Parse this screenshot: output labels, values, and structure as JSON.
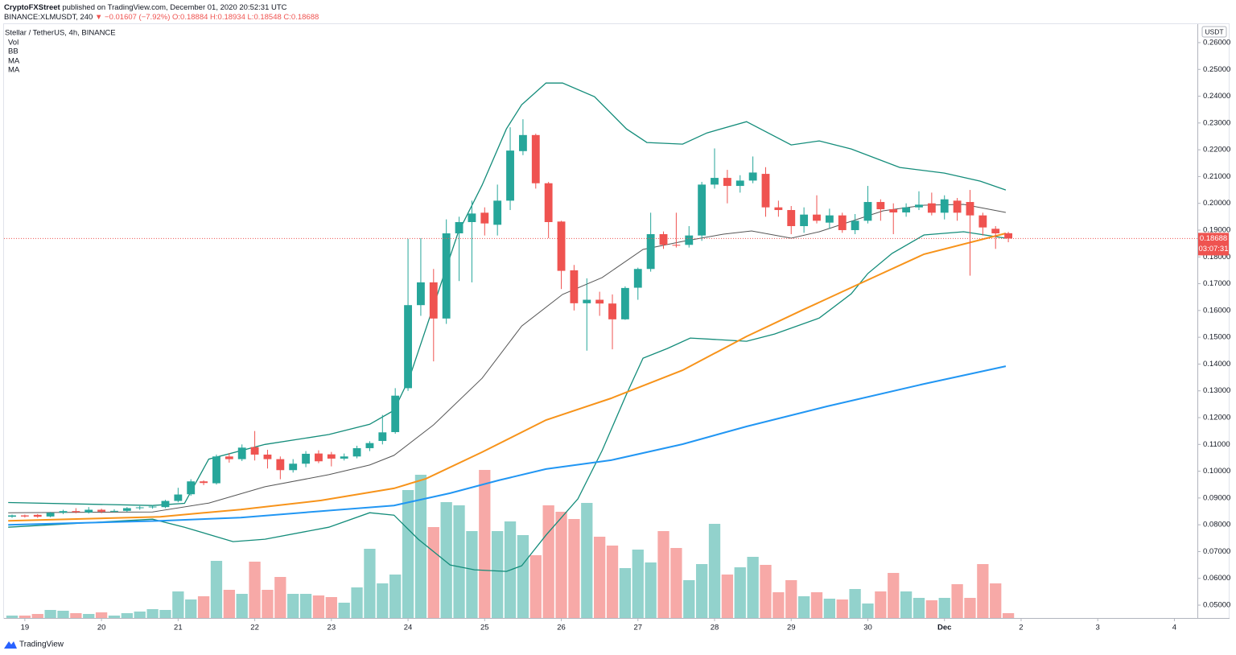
{
  "header": {
    "author": "CryptoFXStreet",
    "published": "published on TradingView.com, December 01, 2020 20:52:31 UTC",
    "symbol": "BINANCE:XLMUSDT, 240",
    "change": "▼ −0.01607 (−7.92%)",
    "ohlc": [
      "O:0.18884",
      "H:0.18934",
      "L:0.18548",
      "C:0.18688"
    ]
  },
  "footer": "TradingView",
  "chart_data": {
    "type": "candlestick",
    "title": "Stellar / TetherUS, 4h, BINANCE",
    "unit": "USDT",
    "up_color": "#26a69a",
    "down_color": "#ef5350",
    "xlim": [
      -0.63,
      92.8
    ],
    "xticks": [
      {
        "value": 1,
        "label": "19"
      },
      {
        "value": 7,
        "label": "20"
      },
      {
        "value": 13,
        "label": "21"
      },
      {
        "value": 19,
        "label": "22"
      },
      {
        "value": 25,
        "label": "23"
      },
      {
        "value": 31,
        "label": "24"
      },
      {
        "value": 37,
        "label": "25"
      },
      {
        "value": 43,
        "label": "26"
      },
      {
        "value": 49,
        "label": "27"
      },
      {
        "value": 55,
        "label": "28"
      },
      {
        "value": 61,
        "label": "29"
      },
      {
        "value": 67,
        "label": "30"
      },
      {
        "value": 73,
        "label": "Dec"
      },
      {
        "value": 79,
        "label": "2"
      },
      {
        "value": 85,
        "label": "3"
      },
      {
        "value": 91,
        "label": "4"
      }
    ],
    "ylim": [
      0.0452,
      0.2669
    ],
    "yticks": [
      {
        "value": 0.05,
        "label": "0.05000"
      },
      {
        "value": 0.06,
        "label": "0.06000"
      },
      {
        "value": 0.07,
        "label": "0.07000"
      },
      {
        "value": 0.08,
        "label": "0.08000"
      },
      {
        "value": 0.09,
        "label": "0.09000"
      },
      {
        "value": 0.1,
        "label": "0.10000"
      },
      {
        "value": 0.11,
        "label": "0.11000"
      },
      {
        "value": 0.12,
        "label": "0.12000"
      },
      {
        "value": 0.13,
        "label": "0.13000"
      },
      {
        "value": 0.14,
        "label": "0.14000"
      },
      {
        "value": 0.15,
        "label": "0.15000"
      },
      {
        "value": 0.16,
        "label": "0.16000"
      },
      {
        "value": 0.17,
        "label": "0.17000"
      },
      {
        "value": 0.18,
        "label": "0.18000"
      },
      {
        "value": 0.19,
        "label": "0.19000"
      },
      {
        "value": 0.2,
        "label": "0.20000"
      },
      {
        "value": 0.21,
        "label": "0.21000"
      },
      {
        "value": 0.22,
        "label": "0.22000"
      },
      {
        "value": 0.23,
        "label": "0.23000"
      },
      {
        "value": 0.24,
        "label": "0.24000"
      },
      {
        "value": 0.25,
        "label": "0.25000"
      },
      {
        "value": 0.26,
        "label": "0.26000"
      }
    ],
    "grid": false,
    "candles": {
      "open": [
        0.083,
        0.0835,
        0.0837,
        0.0831,
        0.0845,
        0.0851,
        0.0846,
        0.0856,
        0.0849,
        0.0852,
        0.0862,
        0.0865,
        0.0866,
        0.0889,
        0.0914,
        0.0962,
        0.0955,
        0.1055,
        0.1045,
        0.109,
        0.1062,
        0.1045,
        0.1004,
        0.1028,
        0.1066,
        0.1063,
        0.1047,
        0.1055,
        0.1086,
        0.1113,
        0.1146,
        0.131,
        0.162,
        0.1705,
        0.157,
        0.1888,
        0.193,
        0.1965,
        0.192,
        0.201,
        0.2195,
        0.2255,
        0.2075,
        0.1932,
        0.175,
        0.1627,
        0.164,
        0.1626,
        0.1567,
        0.1685,
        0.1755,
        0.1885,
        0.1845,
        0.1845,
        0.188,
        0.207,
        0.2095,
        0.2065,
        0.2085,
        0.211,
        0.1985,
        0.1975,
        0.1915,
        0.1958,
        0.1928,
        0.1955,
        0.19,
        0.1935,
        0.2005,
        0.1978,
        0.1966,
        0.1985,
        0.2,
        0.1965,
        0.201,
        0.2005,
        0.1955,
        0.1905,
        0.18884
      ],
      "high": [
        0.0838,
        0.0838,
        0.084,
        0.0848,
        0.0856,
        0.0862,
        0.0866,
        0.086,
        0.0858,
        0.0866,
        0.087,
        0.0874,
        0.0893,
        0.0938,
        0.097,
        0.0966,
        0.1062,
        0.1068,
        0.11,
        0.115,
        0.108,
        0.1055,
        0.1045,
        0.1075,
        0.1078,
        0.1072,
        0.1066,
        0.1095,
        0.1112,
        0.121,
        0.131,
        0.1868,
        0.187,
        0.1755,
        0.194,
        0.195,
        0.201,
        0.1985,
        0.207,
        0.2284,
        0.2314,
        0.226,
        0.208,
        0.1935,
        0.177,
        0.172,
        0.167,
        0.166,
        0.169,
        0.176,
        0.1965,
        0.1895,
        0.1965,
        0.1915,
        0.208,
        0.2205,
        0.2125,
        0.2105,
        0.2175,
        0.2135,
        0.201,
        0.199,
        0.1985,
        0.203,
        0.198,
        0.1965,
        0.196,
        0.2065,
        0.2015,
        0.2,
        0.2,
        0.2045,
        0.204,
        0.203,
        0.202,
        0.205,
        0.1965,
        0.1915,
        0.18934
      ],
      "low": [
        0.0826,
        0.0827,
        0.0826,
        0.0828,
        0.084,
        0.0843,
        0.0842,
        0.0843,
        0.0845,
        0.0848,
        0.0856,
        0.086,
        0.0862,
        0.0884,
        0.0908,
        0.0948,
        0.095,
        0.1032,
        0.1038,
        0.104,
        0.101,
        0.097,
        0.0995,
        0.1015,
        0.103,
        0.1018,
        0.104,
        0.1048,
        0.1075,
        0.11,
        0.114,
        0.13,
        0.158,
        0.141,
        0.155,
        0.171,
        0.1705,
        0.188,
        0.188,
        0.1975,
        0.218,
        0.2055,
        0.187,
        0.168,
        0.16,
        0.145,
        0.158,
        0.1455,
        0.1565,
        0.164,
        0.1745,
        0.183,
        0.1835,
        0.1835,
        0.186,
        0.2055,
        0.2,
        0.204,
        0.2075,
        0.195,
        0.195,
        0.1885,
        0.189,
        0.1925,
        0.1905,
        0.189,
        0.1885,
        0.1925,
        0.1935,
        0.1885,
        0.195,
        0.1975,
        0.1955,
        0.194,
        0.1935,
        0.173,
        0.188,
        0.183,
        0.18548
      ],
      "close": [
        0.0835,
        0.0831,
        0.083,
        0.0845,
        0.0851,
        0.0847,
        0.0856,
        0.0849,
        0.0852,
        0.0862,
        0.0865,
        0.0868,
        0.0889,
        0.0913,
        0.0962,
        0.0956,
        0.1055,
        0.1045,
        0.1088,
        0.1062,
        0.1045,
        0.1004,
        0.1028,
        0.1065,
        0.1037,
        0.1047,
        0.1055,
        0.1086,
        0.1105,
        0.1145,
        0.1282,
        0.162,
        0.1705,
        0.157,
        0.1888,
        0.193,
        0.1962,
        0.1925,
        0.201,
        0.2197,
        0.2255,
        0.2075,
        0.193,
        0.1748,
        0.1627,
        0.164,
        0.1626,
        0.1567,
        0.1684,
        0.1755,
        0.1885,
        0.1845,
        0.1842,
        0.188,
        0.207,
        0.2095,
        0.2065,
        0.2085,
        0.2115,
        0.1985,
        0.1975,
        0.1915,
        0.1958,
        0.1935,
        0.1955,
        0.19,
        0.1935,
        0.2005,
        0.1978,
        0.1966,
        0.1985,
        0.1995,
        0.1965,
        0.2015,
        0.1965,
        0.1955,
        0.191,
        0.1888,
        0.18688
      ]
    },
    "volume": {
      "name": "Vol",
      "up_color": "#92d2cc",
      "down_color": "#f7a9a7",
      "values": [
        3,
        3,
        5,
        10,
        9,
        6,
        5,
        7,
        3,
        6,
        8,
        11,
        10,
        33,
        23,
        27,
        71,
        35,
        30,
        70,
        35,
        51,
        30,
        30,
        28,
        26,
        19,
        38,
        86,
        43,
        54,
        159,
        178,
        113,
        144,
        140,
        108,
        184,
        108,
        120,
        103,
        78,
        140,
        132,
        123,
        143,
        101,
        90,
        62,
        85,
        69,
        108,
        87,
        47,
        67,
        117,
        54,
        63,
        76,
        66,
        32,
        47,
        27,
        32,
        24,
        23,
        36,
        18,
        33,
        56,
        33,
        25,
        22,
        25,
        42,
        25,
        67,
        43,
        6
      ]
    },
    "bb": {
      "name": "BB",
      "color": "#138c7a",
      "middle_color": "#555555",
      "upper": {
        "x": [
          -0.3,
          11,
          13.5,
          15.4,
          19.8,
          24.8,
          28,
          29.9,
          31.1,
          33,
          34.9,
          36.8,
          38.7,
          39.9,
          41.8,
          43.1,
          45.6,
          48.1,
          49.7,
          52.5,
          54.4,
          57.5,
          61,
          63.2,
          65.7,
          69.5,
          73,
          75.8,
          77.8
        ],
        "values": [
          0.0883,
          0.0872,
          0.088,
          0.1045,
          0.11,
          0.1137,
          0.1175,
          0.1227,
          0.1347,
          0.1617,
          0.1888,
          0.2068,
          0.2278,
          0.2368,
          0.2449,
          0.2449,
          0.2398,
          0.2278,
          0.2227,
          0.2221,
          0.2263,
          0.2305,
          0.2218,
          0.2233,
          0.2203,
          0.2134,
          0.2113,
          0.2083,
          0.205
        ]
      },
      "middle": {
        "x": [
          -0.3,
          11,
          15.4,
          19.8,
          24.8,
          28,
          29.9,
          33,
          36.8,
          39.9,
          43.1,
          46.2,
          49.4,
          52.5,
          55.7,
          57.9,
          61,
          63.2,
          65.7,
          68.2,
          71.4,
          74.5,
          77.8
        ],
        "values": [
          0.0845,
          0.0848,
          0.0881,
          0.0942,
          0.0987,
          0.1023,
          0.1059,
          0.1173,
          0.1347,
          0.1542,
          0.166,
          0.1723,
          0.1828,
          0.1858,
          0.1885,
          0.1897,
          0.187,
          0.1894,
          0.1933,
          0.1972,
          0.1993,
          0.1996,
          0.1966
        ]
      },
      "lower": {
        "x": [
          -0.3,
          11,
          13.5,
          17.3,
          19.8,
          24.8,
          28,
          29.9,
          31.8,
          34.3,
          36.2,
          38.7,
          39.9,
          41.8,
          44.3,
          46.2,
          48.1,
          49.4,
          51.3,
          53.1,
          57.5,
          59.7,
          63.2,
          65.7,
          67,
          68.9,
          71.4,
          74.5,
          77.8
        ],
        "values": [
          0.0791,
          0.0821,
          0.0791,
          0.0737,
          0.0746,
          0.0791,
          0.0845,
          0.0836,
          0.0746,
          0.065,
          0.0632,
          0.0626,
          0.0647,
          0.0761,
          0.0897,
          0.1077,
          0.1287,
          0.1422,
          0.1458,
          0.1497,
          0.1485,
          0.1512,
          0.1572,
          0.1662,
          0.1738,
          0.1813,
          0.1882,
          0.1894,
          0.187
        ]
      }
    },
    "ma": [
      {
        "name": "MA",
        "color": "#f7931a",
        "x": [
          -0.3,
          11.6,
          17.9,
          24.2,
          29.9,
          32.4,
          36.8,
          41.8,
          46.9,
          52.5,
          57.5,
          61.9,
          67,
          71.4,
          77.8
        ],
        "values": [
          0.0815,
          0.083,
          0.0857,
          0.0891,
          0.0936,
          0.0972,
          0.1071,
          0.1191,
          0.1272,
          0.1377,
          0.1503,
          0.1602,
          0.1714,
          0.181,
          0.1888
        ]
      },
      {
        "name": "MA",
        "color": "#2196f3",
        "x": [
          -0.3,
          11.6,
          17.9,
          24.2,
          29.9,
          34.3,
          38.1,
          41.8,
          46.9,
          52.5,
          57.5,
          63.8,
          71.4,
          77.8
        ],
        "values": [
          0.08,
          0.0815,
          0.0827,
          0.0851,
          0.0872,
          0.0918,
          0.0966,
          0.1008,
          0.1041,
          0.1101,
          0.1167,
          0.1242,
          0.1326,
          0.1392
        ]
      }
    ],
    "last": {
      "value": 0.18688,
      "countdown": "03:07:31",
      "color": "#ef5350"
    }
  }
}
